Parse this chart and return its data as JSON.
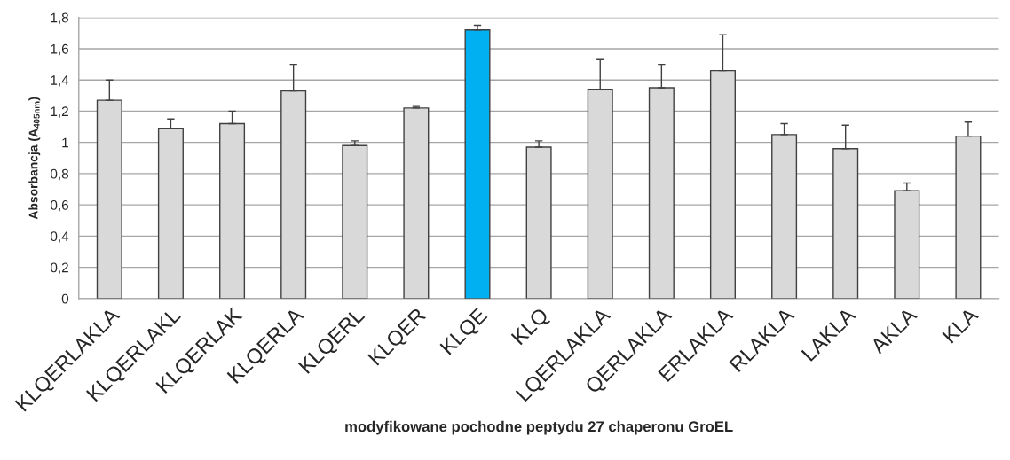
{
  "chart_data": {
    "type": "bar",
    "xlabel": "modyfikowane pochodne peptydu 27 chaperonu GroEL",
    "ylabel": "Absorbancja (A$_{405nm}$)",
    "categories": [
      "KLQERLAKLA",
      "KLQERLAKL",
      "KLQERLAK",
      "KLQERLA",
      "KLQERL",
      "KLQER",
      "KLQE",
      "KLQ",
      "LQERLAKLA",
      "QERLAKLA",
      "ERLAKLA",
      "RLAKLA",
      "LAKLA",
      "AKLA",
      "KLA"
    ],
    "values": [
      1.27,
      1.09,
      1.12,
      1.33,
      0.98,
      1.22,
      1.72,
      0.97,
      1.34,
      1.35,
      1.46,
      1.05,
      0.96,
      0.69,
      1.04
    ],
    "colors": [
      "#d9d9d9",
      "#d9d9d9",
      "#d9d9d9",
      "#d9d9d9",
      "#d9d9d9",
      "#d9d9d9",
      "#00b0f0",
      "#d9d9d9",
      "#d9d9d9",
      "#d9d9d9",
      "#d9d9d9",
      "#d9d9d9",
      "#d9d9d9",
      "#d9d9d9",
      "#d9d9d9"
    ],
    "errors": [
      [
        1.27,
        1.4
      ],
      [
        1.09,
        1.15
      ],
      [
        1.12,
        1.2
      ],
      [
        1.33,
        1.5
      ],
      [
        0.98,
        1.01
      ],
      [
        1.22,
        1.23
      ],
      [
        1.72,
        1.75
      ],
      [
        0.97,
        1.01
      ],
      [
        1.34,
        1.53
      ],
      [
        1.35,
        1.5
      ],
      [
        1.46,
        1.69
      ],
      [
        1.05,
        1.12
      ],
      [
        0.96,
        1.11
      ],
      [
        0.69,
        0.74
      ],
      [
        1.04,
        1.13
      ]
    ],
    "ylim": [
      0,
      1.8
    ],
    "yticks": [
      0,
      {
        "value": 0.2,
        "label": "0,2"
      },
      {
        "value": 0.4,
        "label": "0,4"
      },
      {
        "value": 0.6,
        "label": "0,6"
      },
      {
        "value": 0.8,
        "label": "0,8"
      },
      1,
      {
        "value": 1.2,
        "label": "1,2"
      },
      {
        "value": 1.4,
        "label": "1,4"
      },
      {
        "value": 1.6,
        "label": "1,6"
      },
      {
        "value": 1.8,
        "label": "1,8"
      }
    ],
    "grid": "y"
  }
}
